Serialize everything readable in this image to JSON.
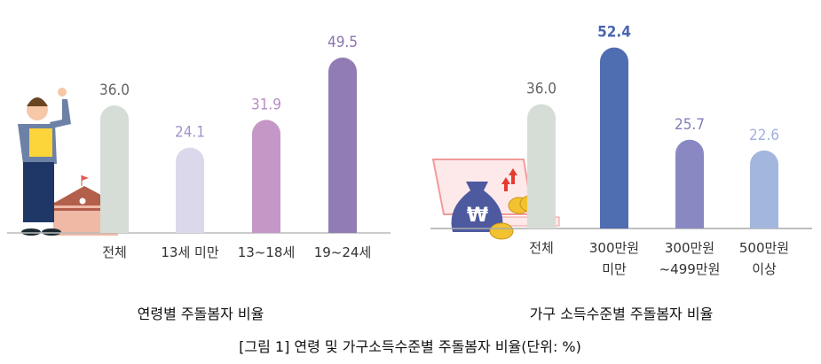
{
  "chart_data": [
    {
      "type": "bar",
      "title": "연령별 주돌봄자 비율",
      "categories": [
        "전체",
        "13세 미만",
        "13~18세",
        "19~24세"
      ],
      "values": [
        36.0,
        24.1,
        31.9,
        49.5
      ],
      "bar_colors": [
        "#d6dcd6",
        "#dcd8eb",
        "#c497c6",
        "#917cb5"
      ],
      "label_colors": [
        "#666666",
        "#a394cc",
        "#b88dc4",
        "#8a74b0"
      ],
      "ylim": [
        0,
        55
      ],
      "grid": false
    },
    {
      "type": "bar",
      "title": "가구 소득수준별 주돌봄자 비율",
      "categories": [
        "전체",
        "300만원\n미만",
        "300만원\n~499만원",
        "500만원\n이상"
      ],
      "values": [
        36.0,
        52.4,
        25.7,
        22.6
      ],
      "bar_colors": [
        "#d6dcd6",
        "#4f6db1",
        "#8a88c3",
        "#a3b6dd"
      ],
      "label_colors": [
        "#666666",
        "#4a66b0",
        "#7f7dbd",
        "#9fb2dc"
      ],
      "ylim": [
        0,
        55
      ],
      "grid": false
    }
  ],
  "captions": {
    "left": "연령별 주돌봄자 비율",
    "right": "가구 소득수준별 주돌봄자 비율",
    "figure": "[그림 1] 연령 및 가구소득수준별 주돌봄자 비율(단위: %)"
  },
  "icons": [
    "student-illustration",
    "school-building-illustration",
    "money-bag-won-illustration",
    "laptop-chart-illustration",
    "coins-illustration"
  ]
}
